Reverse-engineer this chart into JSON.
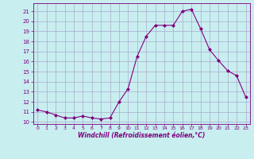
{
  "x": [
    0,
    1,
    2,
    3,
    4,
    5,
    6,
    7,
    8,
    9,
    10,
    11,
    12,
    13,
    14,
    15,
    16,
    17,
    18,
    19,
    20,
    21,
    22,
    23
  ],
  "y": [
    11.2,
    11.0,
    10.7,
    10.4,
    10.4,
    10.6,
    10.4,
    10.3,
    10.4,
    12.0,
    13.3,
    16.5,
    18.5,
    19.6,
    19.6,
    19.6,
    21.0,
    21.2,
    19.3,
    17.2,
    16.1,
    15.1,
    14.6,
    12.5
  ],
  "line_color": "#800080",
  "marker": "D",
  "marker_size": 2,
  "bg_color": "#c8eef0",
  "grid_color": "#aaaacc",
  "xlabel": "Windchill (Refroidissement éolien,°C)",
  "xlabel_color": "#800080",
  "tick_color": "#800080",
  "spine_color": "#800080",
  "ylim": [
    9.8,
    21.8
  ],
  "xlim": [
    -0.5,
    23.5
  ],
  "yticks": [
    10,
    11,
    12,
    13,
    14,
    15,
    16,
    17,
    18,
    19,
    20,
    21
  ],
  "xticks": [
    0,
    1,
    2,
    3,
    4,
    5,
    6,
    7,
    8,
    9,
    10,
    11,
    12,
    13,
    14,
    15,
    16,
    17,
    18,
    19,
    20,
    21,
    22,
    23
  ]
}
